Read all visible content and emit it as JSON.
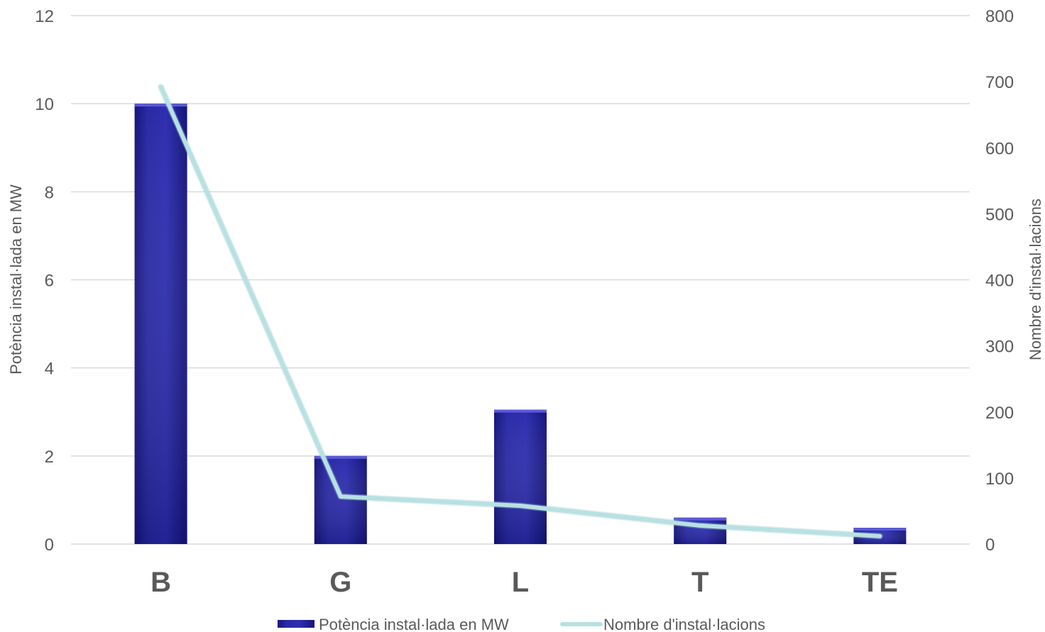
{
  "chart_data": {
    "type": "bar",
    "categories": [
      "B",
      "G",
      "L",
      "T",
      "TE"
    ],
    "series": [
      {
        "name": "Potència instal·lada en MW",
        "type": "bar",
        "axis": "left",
        "values": [
          10.0,
          2.0,
          3.05,
          0.6,
          0.37
        ]
      },
      {
        "name": "Nombre d'instal·lacions",
        "type": "line",
        "axis": "right",
        "values": [
          692,
          72,
          58,
          28,
          12
        ]
      }
    ],
    "ylabel": "Potència instal·lada en MW",
    "y2label": "Nombre d'instal·lacions",
    "ylim": [
      0,
      12
    ],
    "y2lim": [
      0,
      800
    ],
    "yticks": [
      "0",
      "2",
      "4",
      "6",
      "8",
      "10",
      "12"
    ],
    "y2ticks": [
      "0",
      "100",
      "200",
      "300",
      "400",
      "500",
      "600",
      "700",
      "800"
    ],
    "grid": true,
    "legend_position": "bottom",
    "colors": {
      "bar": "#2a2aa6",
      "bar_dark": "#15157a",
      "bar_light": "#5a5ad6",
      "line": "#b7e1e3",
      "grid": "#d9d9d9",
      "text": "#595959"
    }
  }
}
